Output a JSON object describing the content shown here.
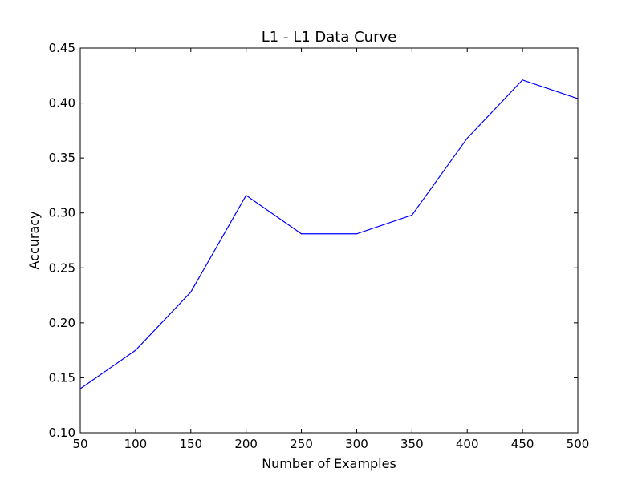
{
  "chart_data": {
    "type": "line",
    "title": "L1 - L1 Data Curve",
    "xlabel": "Number of Examples",
    "ylabel": "Accuracy",
    "xlim": [
      50,
      500
    ],
    "ylim": [
      0.1,
      0.45
    ],
    "xticks": [
      50,
      100,
      150,
      200,
      250,
      300,
      350,
      400,
      450,
      500
    ],
    "xtick_labels": [
      "50",
      "100",
      "150",
      "200",
      "250",
      "300",
      "350",
      "400",
      "450",
      "500"
    ],
    "yticks": [
      0.1,
      0.15,
      0.2,
      0.25,
      0.3,
      0.35,
      0.4,
      0.45
    ],
    "ytick_labels": [
      "0.10",
      "0.15",
      "0.20",
      "0.25",
      "0.30",
      "0.35",
      "0.40",
      "0.45"
    ],
    "grid": false,
    "legend": "none",
    "series": [
      {
        "color": "#0000ff",
        "x": [
          50,
          100,
          150,
          200,
          250,
          300,
          350,
          400,
          450,
          500
        ],
        "y": [
          0.14,
          0.175,
          0.228,
          0.316,
          0.281,
          0.281,
          0.298,
          0.368,
          0.421,
          0.404
        ]
      }
    ]
  }
}
